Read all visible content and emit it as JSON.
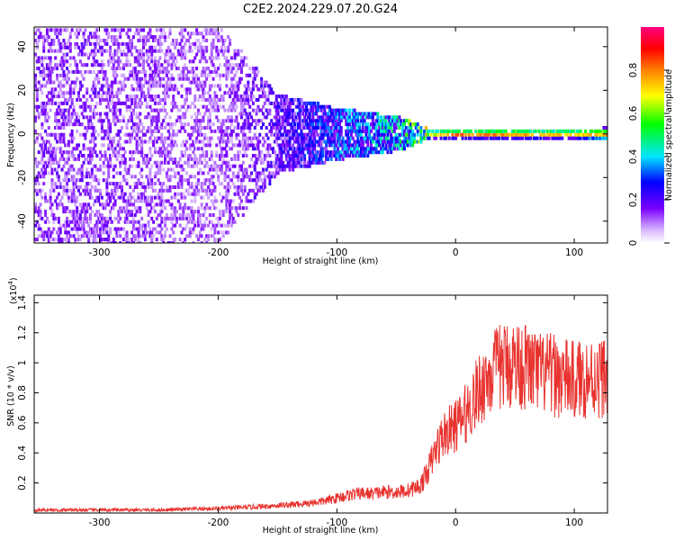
{
  "title": "C2E2.2024.229.07.20.G24",
  "chart_data": [
    {
      "type": "heatmap",
      "xlabel": "Height of straight line (km)",
      "ylabel": "Frequency (Hz)",
      "xlim": [
        -355,
        128
      ],
      "ylim": [
        -50,
        49
      ],
      "xticks": [
        -300,
        -200,
        -100,
        0,
        100
      ],
      "yticks": [
        -40,
        -20,
        0,
        20,
        40
      ],
      "colorbar": {
        "label": "Normalized spectral amplitude",
        "range": [
          0.0,
          1.0
        ],
        "ticks": [
          0.0,
          0.2,
          0.4,
          0.6,
          0.8
        ],
        "colormap": "rainbow (white → violet → blue → cyan → green → yellow → red → magenta)"
      },
      "description_points": [
        {
          "x": -300,
          "band_halfwidth_hz": 50,
          "amplitude": 0.15
        },
        {
          "x": -200,
          "band_halfwidth_hz": 50,
          "amplitude": 0.12
        },
        {
          "x": -150,
          "band_halfwidth_hz": 18,
          "amplitude": 0.2
        },
        {
          "x": -100,
          "band_halfwidth_hz": 12,
          "amplitude": 0.3
        },
        {
          "x": -50,
          "band_halfwidth_hz": 8,
          "amplitude": 0.4
        },
        {
          "x": -20,
          "band_halfwidth_hz": 2,
          "amplitude": 0.7
        },
        {
          "x": 0,
          "band_halfwidth_hz": 2,
          "amplitude": 0.9
        },
        {
          "x": 50,
          "band_halfwidth_hz": 2,
          "amplitude": 0.85
        },
        {
          "x": 100,
          "band_halfwidth_hz": 2,
          "amplitude": 0.8
        },
        {
          "x": 128,
          "band_halfwidth_hz": 3,
          "amplitude": 0.8
        }
      ]
    },
    {
      "type": "line",
      "xlabel": "Height of straight line (km)",
      "ylabel": "SNR (10 * v/v)",
      "y_multiplier": "(x10",
      "y_multiplier_exp": "4",
      "xlim": [
        -355,
        128
      ],
      "ylim": [
        0,
        1.45
      ],
      "xticks": [
        -300,
        -200,
        -100,
        0,
        100
      ],
      "yticks": [
        0.2,
        0.4,
        0.6,
        0.8,
        1.0,
        1.2,
        1.4
      ],
      "color": "#e8332f",
      "series": [
        {
          "x": [
            -355,
            -300,
            -250,
            -200,
            -170,
            -150,
            -130,
            -110,
            -100,
            -90,
            -80,
            -70,
            -60,
            -50,
            -40,
            -30,
            -25,
            -20,
            -15,
            -10,
            -5,
            0,
            5,
            10,
            15,
            20,
            25,
            30,
            35,
            40,
            50,
            60,
            70,
            80,
            90,
            100,
            110,
            120,
            128
          ],
          "y": [
            0.02,
            0.02,
            0.02,
            0.03,
            0.04,
            0.05,
            0.06,
            0.08,
            0.1,
            0.12,
            0.13,
            0.13,
            0.14,
            0.14,
            0.15,
            0.18,
            0.25,
            0.35,
            0.45,
            0.52,
            0.55,
            0.58,
            0.62,
            0.68,
            0.75,
            0.82,
            0.88,
            0.93,
            0.96,
            0.98,
            1.0,
            0.97,
            0.93,
            0.92,
            0.9,
            0.88,
            0.9,
            0.9,
            0.92
          ]
        }
      ]
    }
  ]
}
